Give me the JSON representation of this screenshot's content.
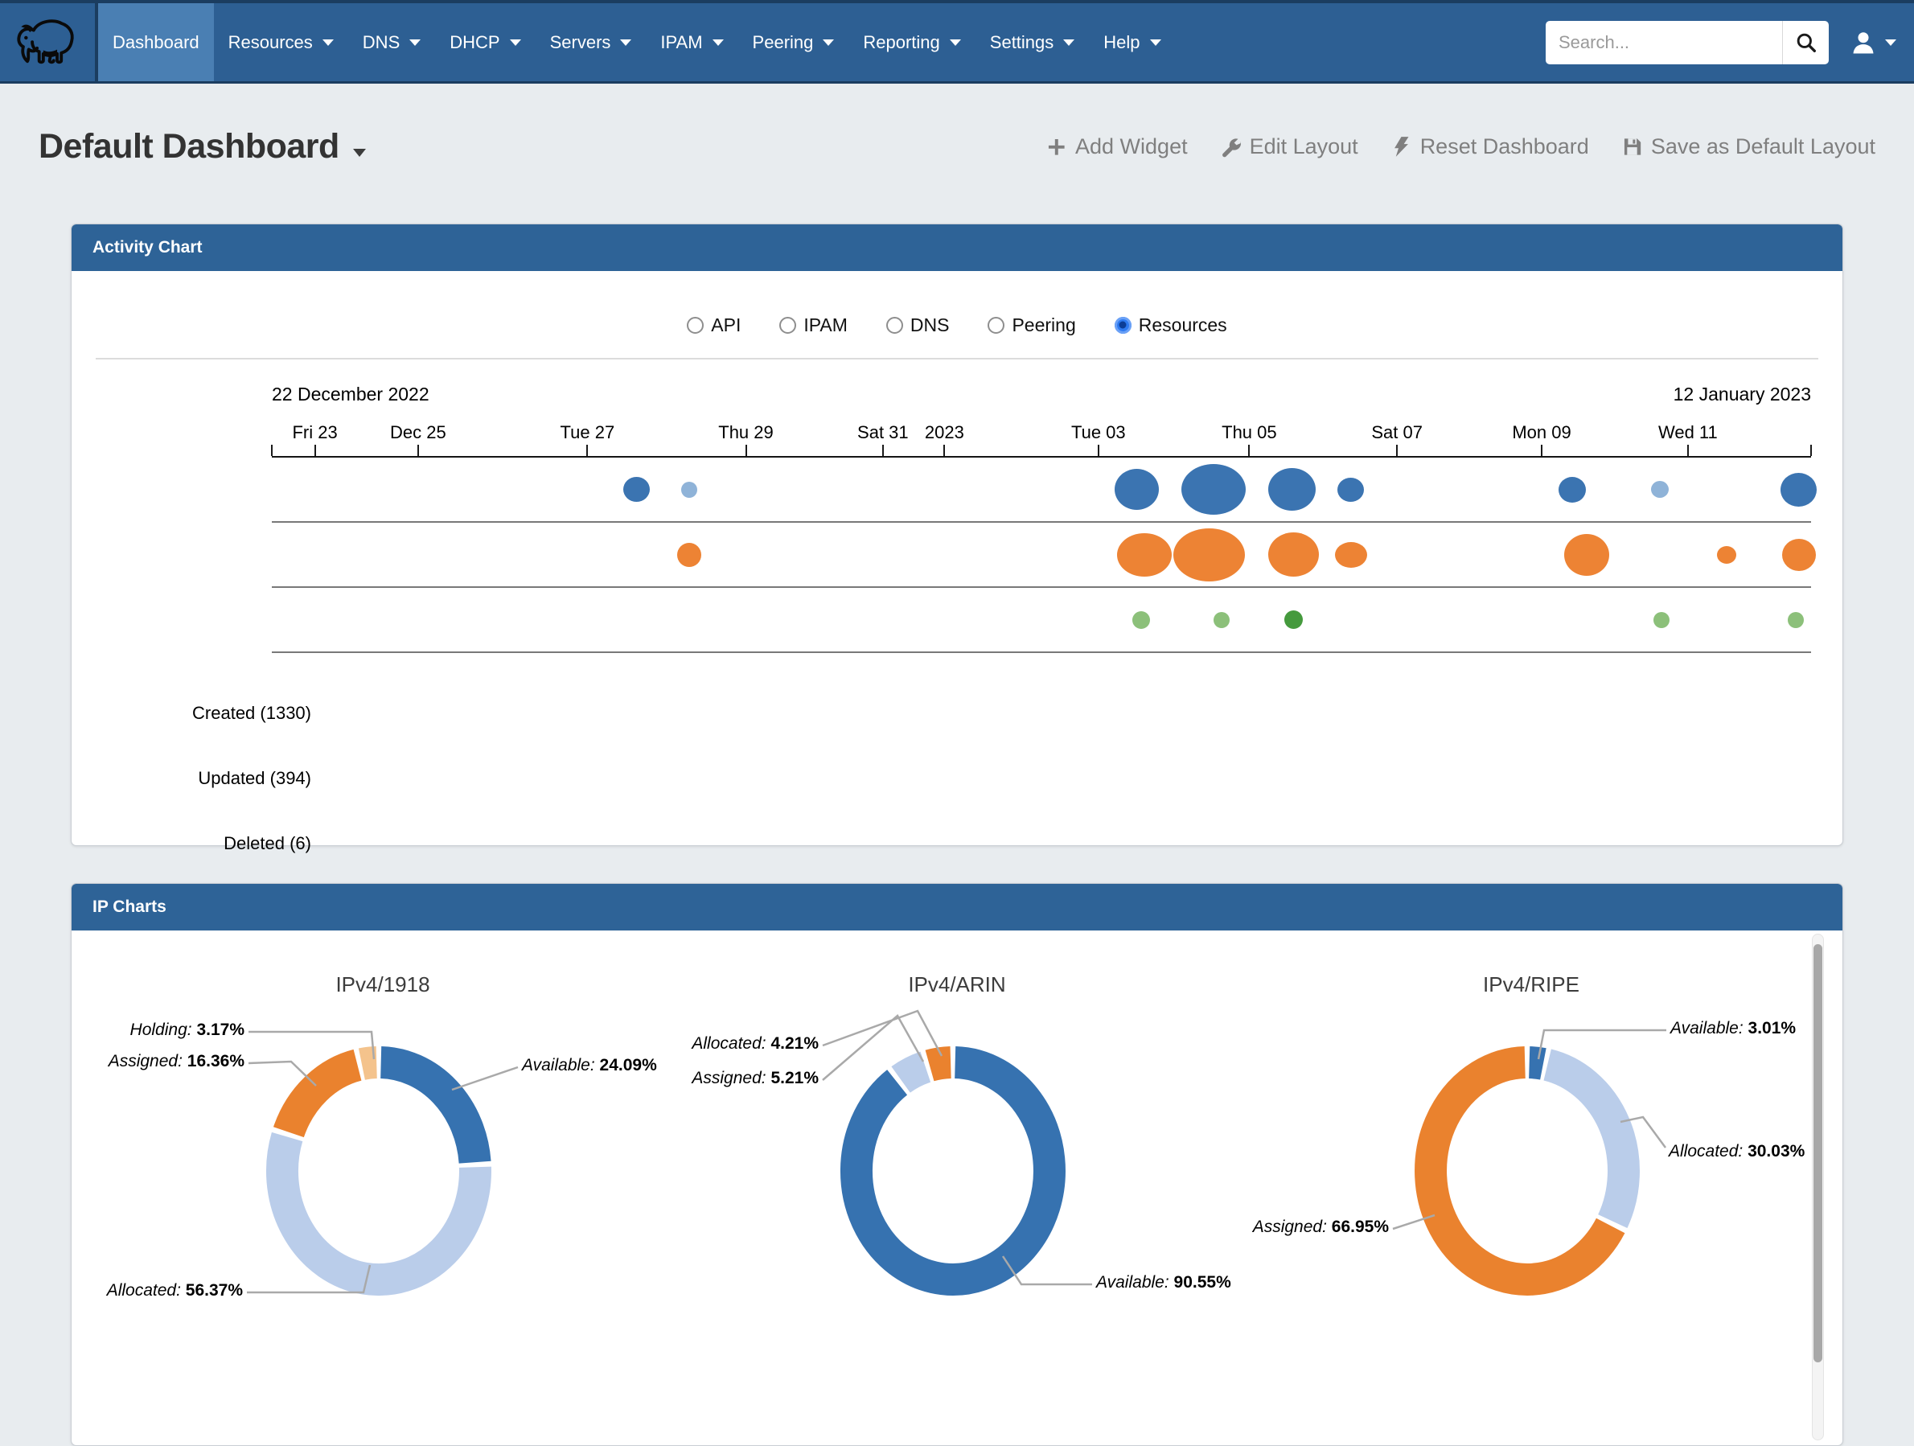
{
  "navbar": {
    "logo": "mammoth-logo",
    "items": [
      {
        "label": "Dashboard",
        "active": true,
        "caret": false
      },
      {
        "label": "Resources",
        "active": false,
        "caret": true
      },
      {
        "label": "DNS",
        "active": false,
        "caret": true
      },
      {
        "label": "DHCP",
        "active": false,
        "caret": true
      },
      {
        "label": "Servers",
        "active": false,
        "caret": true
      },
      {
        "label": "IPAM",
        "active": false,
        "caret": true
      },
      {
        "label": "Peering",
        "active": false,
        "caret": true
      },
      {
        "label": "Reporting",
        "active": false,
        "caret": true
      },
      {
        "label": "Settings",
        "active": false,
        "caret": true
      },
      {
        "label": "Help",
        "active": false,
        "caret": true
      }
    ],
    "search": {
      "placeholder": "Search..."
    }
  },
  "page_header": {
    "title": "Default Dashboard",
    "actions": [
      {
        "icon": "plus-icon",
        "label": "Add Widget"
      },
      {
        "icon": "wrench-icon",
        "label": "Edit Layout"
      },
      {
        "icon": "bolt-icon",
        "label": "Reset Dashboard"
      },
      {
        "icon": "floppy-icon",
        "label": "Save as Default Layout"
      }
    ]
  },
  "activity_panel": {
    "title": "Activity Chart",
    "filters": [
      {
        "label": "API",
        "selected": false
      },
      {
        "label": "IPAM",
        "selected": false
      },
      {
        "label": "DNS",
        "selected": false
      },
      {
        "label": "Peering",
        "selected": false
      },
      {
        "label": "Resources",
        "selected": true
      }
    ]
  },
  "ip_panel": {
    "title": "IP Charts"
  },
  "chart_data": [
    {
      "type": "scatter",
      "variant": "event-drops-timeline",
      "title": "Activity Chart (Resources)",
      "x_axis": {
        "start_label": "22 December 2022",
        "end_label": "12 January 2023",
        "ticks": [
          {
            "pos": 0,
            "label": ""
          },
          {
            "pos": 2.8,
            "label": "Fri 23"
          },
          {
            "pos": 9.5,
            "label": "Dec 25"
          },
          {
            "pos": 20.5,
            "label": "Tue 27"
          },
          {
            "pos": 30.8,
            "label": "Thu 29"
          },
          {
            "pos": 39.7,
            "label": "Sat 31"
          },
          {
            "pos": 43.7,
            "label": "2023"
          },
          {
            "pos": 53.7,
            "label": "Tue 03"
          },
          {
            "pos": 63.5,
            "label": "Thu 05"
          },
          {
            "pos": 73.1,
            "label": "Sat 07"
          },
          {
            "pos": 82.5,
            "label": "Mon 09"
          },
          {
            "pos": 92.0,
            "label": "Wed 11"
          },
          {
            "pos": 100,
            "label": ""
          }
        ]
      },
      "series": [
        {
          "name": "Created (1330)",
          "color": "#3b74b1",
          "color_light": "#8fb3d8",
          "bubbles": [
            {
              "pos": 23.7,
              "w": 33,
              "h": 31
            },
            {
              "pos": 27.1,
              "w": 20,
              "h": 20,
              "light": true
            },
            {
              "pos": 56.2,
              "w": 55,
              "h": 51
            },
            {
              "pos": 61.2,
              "w": 80,
              "h": 63
            },
            {
              "pos": 66.3,
              "w": 59,
              "h": 53
            },
            {
              "pos": 70.1,
              "w": 33,
              "h": 30
            },
            {
              "pos": 84.5,
              "w": 34,
              "h": 32
            },
            {
              "pos": 90.2,
              "w": 22,
              "h": 21,
              "light": true
            },
            {
              "pos": 99.2,
              "w": 45,
              "h": 42
            }
          ]
        },
        {
          "name": "Updated (394)",
          "color": "#ed8334",
          "bubbles": [
            {
              "pos": 27.1,
              "w": 30,
              "h": 30
            },
            {
              "pos": 56.7,
              "w": 68,
              "h": 54
            },
            {
              "pos": 60.9,
              "w": 89,
              "h": 66
            },
            {
              "pos": 66.4,
              "w": 63,
              "h": 55
            },
            {
              "pos": 70.1,
              "w": 40,
              "h": 32
            },
            {
              "pos": 85.4,
              "w": 56,
              "h": 52
            },
            {
              "pos": 94.5,
              "w": 24,
              "h": 22
            },
            {
              "pos": 99.2,
              "w": 42,
              "h": 40
            }
          ]
        },
        {
          "name": "Deleted (6)",
          "color": "#8cc07a",
          "color_dark": "#459a3d",
          "bubbles": [
            {
              "pos": 56.5,
              "w": 22,
              "h": 22
            },
            {
              "pos": 61.7,
              "w": 20,
              "h": 20
            },
            {
              "pos": 66.4,
              "w": 23,
              "h": 23,
              "dark": true
            },
            {
              "pos": 90.3,
              "w": 20,
              "h": 20
            },
            {
              "pos": 99.0,
              "w": 20,
              "h": 20
            }
          ]
        }
      ]
    },
    {
      "type": "pie",
      "variant": "donut",
      "title": "IPv4/1918",
      "unit": "%",
      "slices": [
        {
          "label": "Available",
          "value": 24.09,
          "color": "#3672b0"
        },
        {
          "label": "Allocated",
          "value": 56.37,
          "color": "#bacdea"
        },
        {
          "label": "Assigned",
          "value": 16.36,
          "color": "#ea822e"
        },
        {
          "label": "Holding",
          "value": 3.17,
          "color": "#f4c38c"
        }
      ]
    },
    {
      "type": "pie",
      "variant": "donut",
      "title": "IPv4/ARIN",
      "unit": "%",
      "slices": [
        {
          "label": "Available",
          "value": 90.55,
          "color": "#3672b0"
        },
        {
          "label": "Assigned",
          "value": 5.21,
          "color": "#bacdea"
        },
        {
          "label": "Allocated",
          "value": 4.21,
          "color": "#ea822e"
        }
      ]
    },
    {
      "type": "pie",
      "variant": "donut",
      "title": "IPv4/RIPE",
      "unit": "%",
      "slices": [
        {
          "label": "Available",
          "value": 3.01,
          "color": "#3672b0"
        },
        {
          "label": "Allocated",
          "value": 30.03,
          "color": "#bacdea"
        },
        {
          "label": "Assigned",
          "value": 66.95,
          "color": "#ea822e"
        }
      ]
    }
  ]
}
